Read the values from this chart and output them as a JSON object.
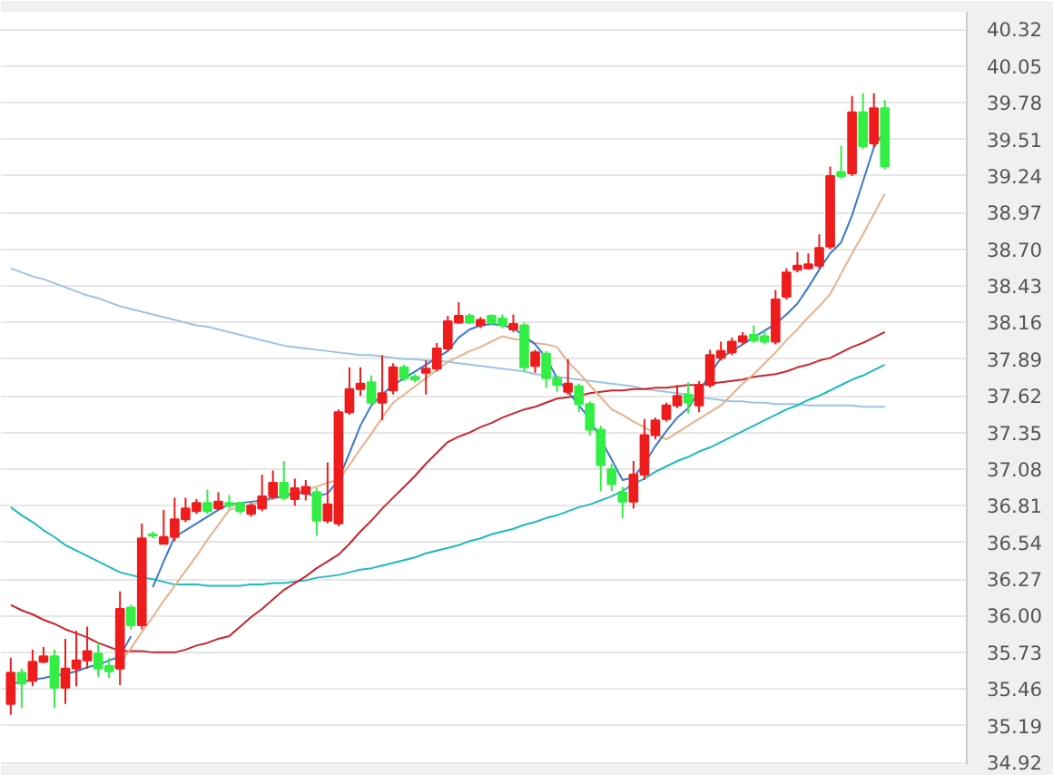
{
  "chart_data": {
    "type": "candlestick",
    "categories": [
      null,
      null,
      null,
      null,
      null,
      null,
      null,
      null,
      null,
      null,
      null,
      null,
      null,
      null,
      null,
      null,
      null,
      null,
      null,
      null,
      null,
      null,
      null,
      null,
      null,
      null,
      null,
      null,
      null,
      null,
      null,
      null,
      null,
      null,
      null,
      null,
      null,
      null,
      null,
      null,
      null,
      null,
      null,
      null,
      null,
      null,
      null,
      null,
      null,
      null,
      null,
      null,
      null,
      null,
      null,
      null,
      null,
      null,
      null,
      null,
      null,
      null,
      null,
      null,
      null,
      null,
      null,
      null,
      null,
      null,
      null,
      null,
      null,
      null,
      null,
      null,
      null,
      null,
      null,
      null,
      null
    ],
    "ohlc": [
      [
        35.35,
        35.69,
        35.27,
        35.58
      ],
      [
        35.58,
        35.61,
        35.32,
        35.5
      ],
      [
        35.52,
        35.75,
        35.48,
        35.66
      ],
      [
        35.66,
        35.77,
        35.65,
        35.7
      ],
      [
        35.7,
        35.75,
        35.32,
        35.47
      ],
      [
        35.47,
        35.83,
        35.35,
        35.61
      ],
      [
        35.61,
        35.89,
        35.48,
        35.67
      ],
      [
        35.67,
        35.92,
        35.61,
        35.74
      ],
      [
        35.72,
        35.8,
        35.55,
        35.61
      ],
      [
        35.63,
        35.69,
        35.54,
        35.59
      ],
      [
        35.61,
        36.18,
        35.49,
        36.05
      ],
      [
        36.06,
        36.08,
        35.9,
        35.93
      ],
      [
        35.93,
        36.68,
        35.9,
        36.57
      ],
      [
        36.6,
        36.62,
        36.57,
        36.59
      ],
      [
        36.53,
        36.78,
        36.53,
        36.58
      ],
      [
        36.58,
        36.87,
        36.55,
        36.71
      ],
      [
        36.71,
        36.87,
        36.69,
        36.79
      ],
      [
        36.77,
        36.86,
        36.75,
        36.83
      ],
      [
        36.83,
        36.93,
        36.75,
        36.77
      ],
      [
        36.79,
        36.91,
        36.78,
        36.84
      ],
      [
        36.83,
        36.89,
        36.79,
        36.81
      ],
      [
        36.83,
        36.84,
        36.75,
        36.77
      ],
      [
        36.75,
        36.83,
        36.73,
        36.81
      ],
      [
        36.79,
        37.04,
        36.77,
        36.88
      ],
      [
        36.88,
        37.07,
        36.86,
        36.98
      ],
      [
        36.98,
        37.14,
        36.85,
        36.87
      ],
      [
        36.86,
        37.01,
        36.81,
        36.94
      ],
      [
        36.9,
        37.0,
        36.85,
        36.95
      ],
      [
        36.91,
        36.94,
        36.59,
        36.7
      ],
      [
        36.7,
        37.13,
        36.68,
        36.82
      ],
      [
        36.68,
        37.52,
        36.66,
        37.5
      ],
      [
        37.5,
        37.83,
        37.48,
        37.67
      ],
      [
        37.67,
        37.83,
        37.62,
        37.71
      ],
      [
        37.72,
        37.77,
        37.55,
        37.57
      ],
      [
        37.57,
        37.92,
        37.44,
        37.64
      ],
      [
        37.66,
        37.86,
        37.63,
        37.83
      ],
      [
        37.83,
        37.85,
        37.73,
        37.75
      ],
      [
        37.76,
        37.78,
        37.72,
        37.74
      ],
      [
        37.79,
        37.88,
        37.63,
        37.82
      ],
      [
        37.82,
        38.01,
        37.8,
        37.97
      ],
      [
        37.97,
        38.21,
        37.95,
        38.17
      ],
      [
        38.16,
        38.31,
        38.15,
        38.21
      ],
      [
        38.21,
        38.23,
        38.15,
        38.16
      ],
      [
        38.14,
        38.2,
        38.12,
        38.18
      ],
      [
        38.21,
        38.22,
        38.14,
        38.16
      ],
      [
        38.19,
        38.22,
        38.12,
        38.14
      ],
      [
        38.11,
        38.22,
        38.09,
        38.15
      ],
      [
        38.14,
        38.16,
        37.8,
        37.83
      ],
      [
        37.84,
        37.96,
        37.79,
        37.94
      ],
      [
        37.93,
        37.95,
        37.68,
        37.75
      ],
      [
        37.75,
        37.77,
        37.65,
        37.7
      ],
      [
        37.65,
        37.89,
        37.63,
        37.71
      ],
      [
        37.69,
        37.71,
        37.5,
        37.56
      ],
      [
        37.56,
        37.58,
        37.33,
        37.37
      ],
      [
        37.37,
        37.4,
        36.92,
        37.11
      ],
      [
        37.08,
        37.12,
        36.92,
        36.97
      ],
      [
        36.91,
        36.95,
        36.72,
        36.84
      ],
      [
        36.84,
        37.14,
        36.79,
        37.04
      ],
      [
        37.04,
        37.45,
        37.0,
        37.33
      ],
      [
        37.33,
        37.46,
        37.3,
        37.44
      ],
      [
        37.45,
        37.57,
        37.43,
        37.55
      ],
      [
        37.55,
        37.7,
        37.53,
        37.62
      ],
      [
        37.63,
        37.72,
        37.49,
        37.57
      ],
      [
        37.55,
        37.73,
        37.5,
        37.7
      ],
      [
        37.7,
        37.96,
        37.68,
        37.92
      ],
      [
        37.9,
        38.02,
        37.88,
        37.95
      ],
      [
        37.94,
        38.05,
        37.92,
        38.02
      ],
      [
        38.02,
        38.09,
        38.0,
        38.06
      ],
      [
        38.07,
        38.14,
        38.01,
        38.03
      ],
      [
        38.06,
        38.1,
        38.0,
        38.02
      ],
      [
        38.02,
        38.4,
        38.0,
        38.33
      ],
      [
        38.35,
        38.56,
        38.33,
        38.53
      ],
      [
        38.55,
        38.68,
        38.53,
        38.58
      ],
      [
        38.56,
        38.67,
        38.55,
        38.59
      ],
      [
        38.58,
        38.81,
        38.56,
        38.71
      ],
      [
        38.72,
        39.31,
        38.7,
        39.24
      ],
      [
        39.27,
        39.46,
        39.22,
        39.24
      ],
      [
        39.26,
        39.83,
        39.24,
        39.71
      ],
      [
        39.71,
        39.85,
        39.44,
        39.46
      ],
      [
        39.48,
        39.85,
        39.45,
        39.74
      ],
      [
        39.74,
        39.8,
        39.29,
        39.31
      ]
    ],
    "colors": [
      "#ee1c1c",
      "#33ee44",
      "#ee1c1c",
      "#ee1c1c",
      "#33ee44",
      "#ee1c1c",
      "#ee1c1c",
      "#ee1c1c",
      "#33ee44",
      "#33ee44",
      "#ee1c1c",
      "#33ee44",
      "#ee1c1c",
      "#33ee44",
      "#ee1c1c",
      "#ee1c1c",
      "#ee1c1c",
      "#ee1c1c",
      "#33ee44",
      "#ee1c1c",
      "#33ee44",
      "#33ee44",
      "#ee1c1c",
      "#ee1c1c",
      "#ee1c1c",
      "#33ee44",
      "#ee1c1c",
      "#ee1c1c",
      "#33ee44",
      "#ee1c1c",
      "#ee1c1c",
      "#ee1c1c",
      "#ee1c1c",
      "#33ee44",
      "#ee1c1c",
      "#ee1c1c",
      "#33ee44",
      "#33ee44",
      "#ee1c1c",
      "#ee1c1c",
      "#ee1c1c",
      "#ee1c1c",
      "#33ee44",
      "#ee1c1c",
      "#33ee44",
      "#33ee44",
      "#ee1c1c",
      "#33ee44",
      "#ee1c1c",
      "#33ee44",
      "#33ee44",
      "#ee1c1c",
      "#33ee44",
      "#33ee44",
      "#33ee44",
      "#33ee44",
      "#33ee44",
      "#ee1c1c",
      "#ee1c1c",
      "#ee1c1c",
      "#ee1c1c",
      "#ee1c1c",
      "#33ee44",
      "#ee1c1c",
      "#ee1c1c",
      "#ee1c1c",
      "#ee1c1c",
      "#ee1c1c",
      "#33ee44",
      "#33ee44",
      "#ee1c1c",
      "#ee1c1c",
      "#ee1c1c",
      "#ee1c1c",
      "#ee1c1c",
      "#ee1c1c",
      "#33ee44",
      "#ee1c1c",
      "#33ee44",
      "#ee1c1c",
      "#33ee44"
    ],
    "series": [
      {
        "type": "line",
        "color": "#9dc3e6",
        "values": [
          38.56,
          38.53,
          38.5,
          38.48,
          38.45,
          38.42,
          38.39,
          38.36,
          38.34,
          38.31,
          38.28,
          38.26,
          38.24,
          38.22,
          38.2,
          38.18,
          38.16,
          38.14,
          38.13,
          38.11,
          38.09,
          38.07,
          38.05,
          38.03,
          38.01,
          37.99,
          37.98,
          37.97,
          37.96,
          37.95,
          37.94,
          37.93,
          37.92,
          37.92,
          37.91,
          37.9,
          37.89,
          37.89,
          37.88,
          37.88,
          37.87,
          37.86,
          37.85,
          37.84,
          37.83,
          37.82,
          37.81,
          37.8,
          37.78,
          37.77,
          37.76,
          37.75,
          37.74,
          37.73,
          37.72,
          37.71,
          37.7,
          37.69,
          37.67,
          37.66,
          37.65,
          37.64,
          37.63,
          37.61,
          37.6,
          37.59,
          37.58,
          37.58,
          37.57,
          37.57,
          37.56,
          37.56,
          37.56,
          37.55,
          37.55,
          37.55,
          37.55,
          37.55,
          37.54,
          37.54,
          37.54
        ]
      },
      {
        "type": "line",
        "color": "#1fb8c4",
        "values": [
          36.8,
          36.74,
          36.69,
          36.63,
          36.58,
          36.52,
          36.48,
          36.44,
          36.4,
          36.36,
          36.32,
          36.3,
          36.28,
          36.27,
          36.25,
          36.23,
          36.23,
          36.23,
          36.22,
          36.22,
          36.22,
          36.22,
          36.23,
          36.23,
          36.24,
          36.24,
          36.25,
          36.26,
          36.28,
          36.29,
          36.3,
          36.32,
          36.34,
          36.35,
          36.37,
          36.39,
          36.41,
          36.43,
          36.46,
          36.48,
          36.5,
          36.52,
          36.55,
          36.57,
          36.6,
          36.62,
          36.64,
          36.67,
          36.69,
          36.72,
          36.74,
          36.77,
          36.8,
          36.82,
          36.85,
          36.88,
          36.92,
          36.97,
          37.01,
          37.06,
          37.1,
          37.14,
          37.17,
          37.21,
          37.24,
          37.28,
          37.32,
          37.36,
          37.4,
          37.44,
          37.48,
          37.52,
          37.55,
          37.59,
          37.62,
          37.66,
          37.7,
          37.74,
          37.77,
          37.81,
          37.85
        ]
      },
      {
        "type": "line",
        "color": "#c8262c",
        "values": [
          36.08,
          36.04,
          36.01,
          35.97,
          35.94,
          35.9,
          35.87,
          35.84,
          35.8,
          35.77,
          35.74,
          35.74,
          35.74,
          35.73,
          35.73,
          35.73,
          35.75,
          35.78,
          35.8,
          35.83,
          35.85,
          35.92,
          35.99,
          36.05,
          36.12,
          36.19,
          36.24,
          36.29,
          36.35,
          36.4,
          36.45,
          36.53,
          36.62,
          36.7,
          36.79,
          36.87,
          36.95,
          37.03,
          37.12,
          37.2,
          37.28,
          37.32,
          37.35,
          37.39,
          37.42,
          37.46,
          37.49,
          37.52,
          37.54,
          37.57,
          37.6,
          37.61,
          37.62,
          37.64,
          37.65,
          37.66,
          37.66,
          37.67,
          37.67,
          37.68,
          37.68,
          37.69,
          37.7,
          37.7,
          37.71,
          37.72,
          37.73,
          37.74,
          37.76,
          37.77,
          37.78,
          37.8,
          37.83,
          37.85,
          37.88,
          37.9,
          37.94,
          37.98,
          38.01,
          38.05,
          38.09
        ]
      },
      {
        "type": "line",
        "color": "#e8b08a",
        "values": [
          null,
          null,
          null,
          null,
          null,
          null,
          null,
          null,
          null,
          35.6,
          35.65,
          35.76,
          35.88,
          35.99,
          36.11,
          36.22,
          36.33,
          36.44,
          36.56,
          36.67,
          36.78,
          36.8,
          36.82,
          36.84,
          36.86,
          36.88,
          36.9,
          36.93,
          36.95,
          36.98,
          37.0,
          37.11,
          37.23,
          37.34,
          37.46,
          37.57,
          37.63,
          37.69,
          37.75,
          37.81,
          37.87,
          37.91,
          37.95,
          37.98,
          38.02,
          38.06,
          38.04,
          38.03,
          38.01,
          38.0,
          37.98,
          37.87,
          37.79,
          37.7,
          37.61,
          37.52,
          37.48,
          37.43,
          37.39,
          37.34,
          37.3,
          37.35,
          37.4,
          37.45,
          37.5,
          37.55,
          37.63,
          37.71,
          37.78,
          37.86,
          37.94,
          38.03,
          38.11,
          38.2,
          38.28,
          38.37,
          38.52,
          38.67,
          38.81,
          38.96,
          39.11
        ]
      },
      {
        "type": "line",
        "color": "#3a78d0",
        "values": [
          35.5,
          35.51,
          35.53,
          35.54,
          35.56,
          35.57,
          35.59,
          35.62,
          35.64,
          35.67,
          35.7,
          35.85,
          null,
          36.21,
          36.4,
          36.58,
          36.63,
          36.68,
          36.73,
          36.78,
          36.82,
          36.83,
          36.84,
          36.85,
          36.87,
          36.88,
          36.91,
          36.9,
          36.88,
          36.9,
          37.0,
          37.2,
          37.4,
          37.55,
          37.63,
          37.7,
          37.75,
          37.8,
          37.85,
          37.9,
          37.95,
          38.05,
          38.11,
          38.14,
          38.15,
          38.14,
          38.12,
          38.06,
          38.0,
          37.9,
          37.75,
          37.65,
          37.55,
          37.45,
          37.3,
          37.15,
          37.0,
          37.02,
          37.12,
          37.25,
          37.36,
          37.46,
          37.53,
          37.65,
          37.78,
          37.9,
          37.95,
          38.0,
          38.05,
          38.1,
          38.15,
          38.22,
          38.3,
          38.42,
          38.55,
          38.67,
          38.75,
          38.95,
          39.2,
          39.45,
          39.58
        ]
      }
    ],
    "ylim": [
      34.9,
      40.45
    ],
    "yticks": [
      34.92,
      35.19,
      35.46,
      35.73,
      {
        "value": 36.0,
        "label": "36.00"
      },
      36.27,
      36.54,
      36.81,
      37.08,
      37.35,
      37.62,
      37.89,
      38.16,
      38.43,
      {
        "value": 38.7,
        "label": "38.70"
      },
      38.97,
      39.24,
      39.51,
      39.78,
      40.05,
      40.32
    ],
    "grid": "y",
    "tick_labels": "y"
  }
}
